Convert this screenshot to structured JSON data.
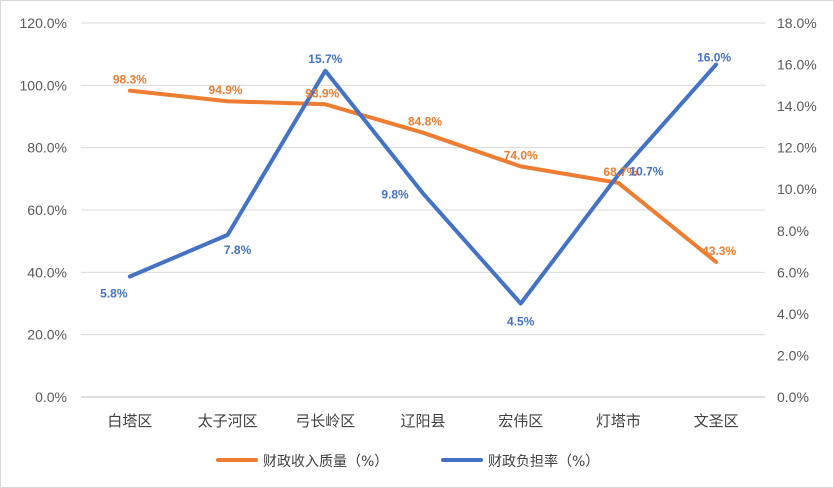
{
  "chart_data": {
    "type": "line",
    "categories": [
      "白塔区",
      "太子河区",
      "弓长岭区",
      "辽阳县",
      "宏伟区",
      "灯塔市",
      "文圣区"
    ],
    "y_left": {
      "ticks": [
        "0.0%",
        "20.0%",
        "40.0%",
        "60.0%",
        "80.0%",
        "100.0%",
        "120.0%"
      ],
      "ylim": [
        0,
        120
      ]
    },
    "y_right": {
      "ticks": [
        "0.0%",
        "2.0%",
        "4.0%",
        "6.0%",
        "8.0%",
        "10.0%",
        "12.0%",
        "14.0%",
        "16.0%",
        "18.0%"
      ],
      "ylim": [
        0,
        18
      ]
    },
    "grid": true,
    "legend_position": "bottom",
    "series": [
      {
        "name": "财政收入质量（%）",
        "axis": "left",
        "color": "#ED7D31",
        "values": [
          98.3,
          94.9,
          93.9,
          84.8,
          74.0,
          68.7,
          43.3
        ],
        "labels": [
          "98.3%",
          "94.9%",
          "93.9%",
          "84.8%",
          "74.0%",
          "68.7%",
          "43.3%"
        ]
      },
      {
        "name": "财政负担率（%）",
        "axis": "right",
        "color": "#4472C4",
        "values": [
          5.8,
          7.8,
          15.7,
          9.8,
          4.5,
          10.7,
          16.0
        ],
        "labels": [
          "5.8%",
          "7.8%",
          "15.7%",
          "9.8%",
          "4.5%",
          "10.7%",
          "16.0%"
        ]
      }
    ]
  }
}
